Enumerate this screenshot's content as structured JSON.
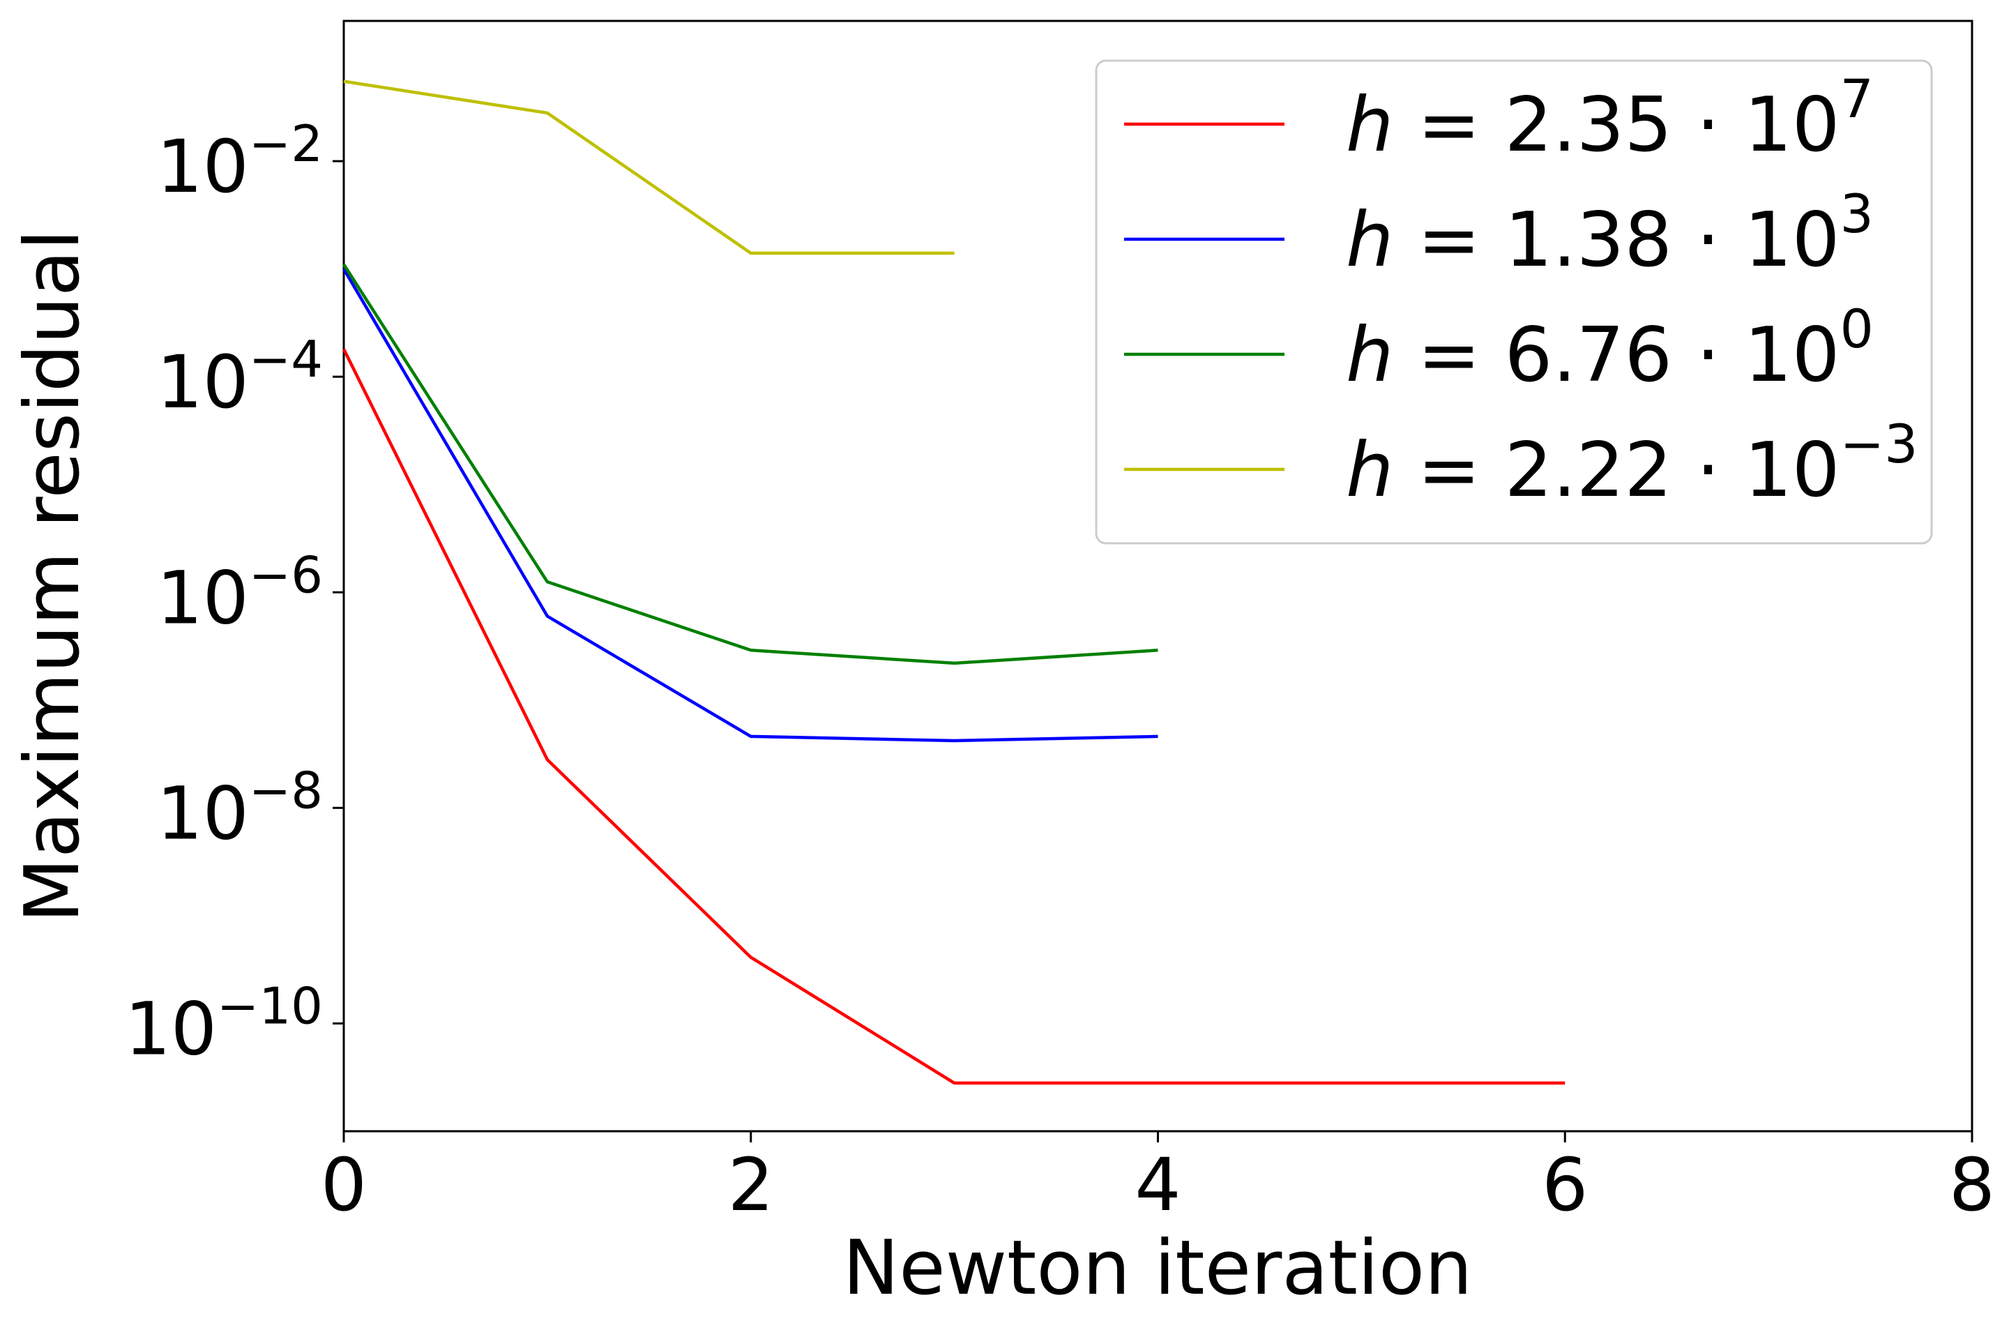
{
  "chart_data": {
    "type": "line",
    "title": "",
    "xlabel": "Newton iteration",
    "ylabel": "Maximum residual",
    "xscale": "linear",
    "yscale": "log",
    "xlim": [
      0,
      8
    ],
    "ylim": [
      1e-11,
      0.2
    ],
    "grid": false,
    "legend_position": "top-right",
    "x_ticks": [
      0,
      2,
      4,
      6,
      8
    ],
    "x_tick_labels": [
      "0",
      "2",
      "4",
      "6",
      "8"
    ],
    "y_ticks": [
      1e-10,
      1e-08,
      1e-06,
      0.0001,
      0.01
    ],
    "y_tick_labels": [
      {
        "base": "10",
        "exp": "−10"
      },
      {
        "base": "10",
        "exp": "−8"
      },
      {
        "base": "10",
        "exp": "−6"
      },
      {
        "base": "10",
        "exp": "−4"
      },
      {
        "base": "10",
        "exp": "−2"
      }
    ],
    "series": [
      {
        "name": "h = 2.35 · 10^7",
        "label_prefix": "h = 2.35 · 10",
        "label_exp": "7",
        "color": "#ff0000",
        "x": [
          0,
          1,
          2,
          3,
          4,
          5,
          6
        ],
        "y": [
          0.00018,
          2.8e-08,
          4.1e-10,
          2.8e-11,
          2.8e-11,
          2.8e-11,
          2.8e-11
        ]
      },
      {
        "name": "h = 1.38 · 10^3",
        "label_prefix": "h = 1.38 · 10",
        "label_exp": "3",
        "color": "#0000ff",
        "x": [
          0,
          1,
          2,
          3,
          4
        ],
        "y": [
          0.001,
          6e-07,
          4.6e-08,
          4.2e-08,
          4.6e-08
        ]
      },
      {
        "name": "h = 6.76 · 10^0",
        "label_prefix": "h = 6.76 · 10",
        "label_exp": "0",
        "color": "#008000",
        "x": [
          0,
          1,
          2,
          3,
          4
        ],
        "y": [
          0.0011,
          1.25e-06,
          2.9e-07,
          2.2e-07,
          2.9e-07
        ]
      },
      {
        "name": "h = 2.22 · 10^−3",
        "label_prefix": "h = 2.22 · 10",
        "label_exp": "−3",
        "color": "#bfbf00",
        "x": [
          0,
          1,
          2,
          3
        ],
        "y": [
          0.055,
          0.028,
          0.0014,
          0.0014
        ]
      }
    ]
  }
}
